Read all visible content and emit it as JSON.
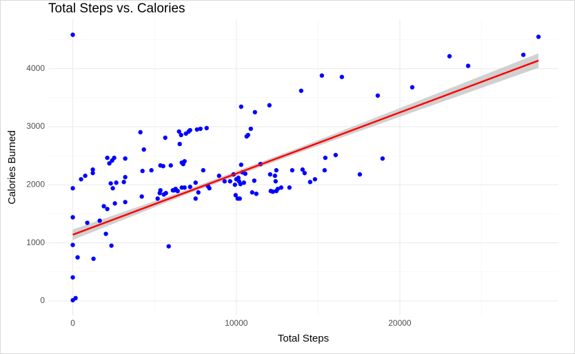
{
  "chart_data": {
    "type": "scatter",
    "title": "Total Steps vs. Calories",
    "x_label": "Total Steps",
    "y_label": "Calories Burned",
    "xlim": [
      -1500,
      29700
    ],
    "ylim": [
      -250,
      4850
    ],
    "xticks": [
      0,
      10000,
      20000
    ],
    "yticks": [
      0,
      1000,
      2000,
      3000,
      4000
    ],
    "x_minor_grid": [
      5000,
      15000,
      25000
    ],
    "y_minor_grid": [
      500,
      1500,
      2500,
      3500,
      4500
    ],
    "grid": true,
    "series": [
      {
        "color": "#0000ff",
        "x": [
          0,
          0,
          0,
          0,
          0,
          0,
          170,
          295,
          506,
          760,
          886,
          1224,
          1224,
          1266,
          1646,
          1899,
          2025,
          2110,
          2110,
          2236,
          2321,
          2363,
          2405,
          2447,
          2532,
          2574,
          2658,
          3122,
          3207,
          3207,
          3207,
          4135,
          4219,
          4262,
          4346,
          4810,
          5190,
          5316,
          5359,
          5359,
          5527,
          5570,
          5654,
          5696,
          5865,
          5992,
          6118,
          6203,
          6287,
          6414,
          6498,
          6540,
          6624,
          6667,
          6667,
          6751,
          6835,
          6835,
          6920,
          7089,
          7173,
          7173,
          7511,
          7511,
          7595,
          7679,
          7806,
          7975,
          8186,
          8270,
          8354,
          8945,
          9283,
          9620,
          9831,
          9916,
          9958,
          10000,
          10084,
          10127,
          10169,
          10211,
          10253,
          10295,
          10295,
          10380,
          10464,
          10549,
          10633,
          10717,
          10886,
          10970,
          11097,
          11139,
          11224,
          11477,
          12025,
          12068,
          12110,
          12236,
          12363,
          12405,
          12447,
          12447,
          12532,
          12743,
          13249,
          13418,
          13966,
          14051,
          14177,
          14515,
          14810,
          15232,
          15401,
          15443,
          16076,
          16456,
          17553,
          18650,
          18945,
          20759,
          23038,
          24177,
          27553,
          28481
        ],
        "values": [
          4583,
          1940,
          1440,
          964,
          405,
          12,
          48,
          750,
          2095,
          2155,
          1345,
          2262,
          2202,
          726,
          1381,
          1631,
          1155,
          2464,
          1583,
          2369,
          2024,
          952,
          2417,
          1940,
          2464,
          1679,
          2036,
          2048,
          2131,
          2452,
          1702,
          2905,
          1798,
          2238,
          2607,
          2250,
          1762,
          1857,
          1905,
          2333,
          2321,
          1833,
          2810,
          1857,
          940,
          2333,
          1905,
          1905,
          1929,
          1893,
          2917,
          2702,
          2857,
          2381,
          1952,
          2357,
          2405,
          1952,
          2881,
          2917,
          1964,
          2940,
          1762,
          2036,
          2952,
          1869,
          2964,
          2250,
          2976,
          1976,
          1940,
          2155,
          2060,
          2060,
          2179,
          2000,
          1821,
          2095,
          1762,
          2119,
          2060,
          1762,
          2012,
          2345,
          3345,
          2214,
          2036,
          2190,
          2833,
          2857,
          2964,
          1869,
          2071,
          3250,
          1845,
          2357,
          3369,
          2179,
          1893,
          1881,
          2155,
          2060,
          2250,
          1893,
          1929,
          1952,
          1952,
          2250,
          3619,
          2262,
          2202,
          2048,
          2095,
          3881,
          2250,
          2464,
          2512,
          3857,
          2179,
          3536,
          2452,
          3679,
          4214,
          4048,
          4238,
          4548
        ]
      }
    ],
    "fit": {
      "color": "#ff0000",
      "band_color": "#bebebe",
      "x": [
        0,
        7000,
        14000,
        21000,
        28481
      ],
      "y": [
        1140,
        1877,
        2614,
        3351,
        4139
      ],
      "lower": [
        1050,
        1837,
        2569,
        3271,
        4014
      ],
      "upper": [
        1230,
        1917,
        2659,
        3431,
        4264
      ]
    }
  }
}
